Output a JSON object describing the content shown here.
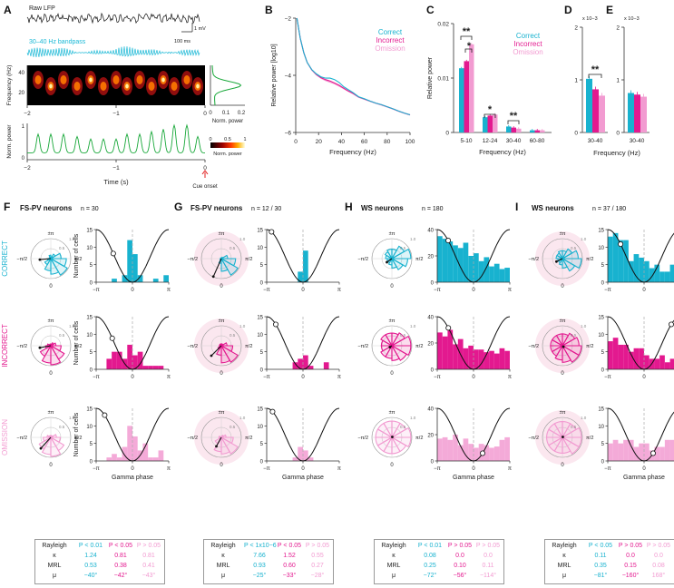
{
  "colors": {
    "correct": "#18b2cf",
    "incorrect": "#e3198f",
    "omission": "#f29bd1",
    "lfp": "#111111",
    "band": "#19b8d6",
    "power": "#19a83a",
    "wave": "#111111",
    "polarbg": "#fbe7ef"
  },
  "panelA": {
    "letter": "A",
    "raw_label": "Raw LFP",
    "band_label": "30–40 Hz bandpass",
    "scale_mv": "1 mV",
    "scale_ms": "100 ms",
    "freq_ylabel": "Frequency (Hz)",
    "freq_ticks": [
      "40",
      "20"
    ],
    "xticks": [
      "−2",
      "−1",
      "0"
    ],
    "side_xticks": [
      "0",
      "0.1",
      "0.2"
    ],
    "side_label": "Norm. power",
    "cbar_ticks": [
      "0",
      "0.5",
      "1"
    ],
    "cbar_label": "Norm. power",
    "pow_ylabel": "Norm. power",
    "pow_yticks": [
      "1",
      "0"
    ],
    "xlabel": "Time (s)",
    "cue_label": "Cue onset"
  },
  "chart_data": [
    {
      "id": "B",
      "type": "line",
      "title": "",
      "xlabel": "Frequency (Hz)",
      "ylabel": "Relative power [log10]",
      "xlim": [
        0,
        100
      ],
      "ylim": [
        -6,
        -2
      ],
      "xticks": [
        "0",
        "20",
        "40",
        "60",
        "80",
        "100"
      ],
      "yticks": [
        "−2",
        "−4",
        "−6"
      ],
      "legend": [
        "Correct",
        "Incorrect",
        "Omission"
      ],
      "x": [
        1,
        4,
        7,
        10,
        14,
        18,
        22,
        26,
        30,
        34,
        38,
        42,
        46,
        50,
        55,
        60,
        65,
        70,
        75,
        80,
        85,
        90,
        95,
        100
      ],
      "series": [
        {
          "name": "Correct",
          "values": [
            -2.0,
            -2.7,
            -3.2,
            -3.55,
            -3.8,
            -3.95,
            -4.05,
            -4.1,
            -4.1,
            -4.15,
            -4.25,
            -4.4,
            -4.5,
            -4.6,
            -4.75,
            -4.82,
            -4.9,
            -4.97,
            -5.03,
            -5.1,
            -5.17,
            -5.25,
            -5.32,
            -5.38
          ]
        },
        {
          "name": "Incorrect",
          "values": [
            -2.0,
            -2.7,
            -3.2,
            -3.55,
            -3.8,
            -3.97,
            -4.08,
            -4.15,
            -4.2,
            -4.27,
            -4.35,
            -4.45,
            -4.55,
            -4.63,
            -4.76,
            -4.83,
            -4.9,
            -4.97,
            -5.03,
            -5.1,
            -5.17,
            -5.25,
            -5.32,
            -5.38
          ]
        },
        {
          "name": "Omission",
          "values": [
            -2.0,
            -2.7,
            -3.2,
            -3.55,
            -3.82,
            -3.98,
            -4.1,
            -4.18,
            -4.24,
            -4.3,
            -4.38,
            -4.47,
            -4.56,
            -4.64,
            -4.77,
            -4.84,
            -4.91,
            -4.98,
            -5.04,
            -5.11,
            -5.18,
            -5.26,
            -5.33,
            -5.39
          ]
        }
      ]
    },
    {
      "id": "C",
      "type": "bar",
      "ylabel": "Relative power",
      "xlabel": "Frequency (Hz)",
      "ylim": [
        0,
        0.02
      ],
      "yticks": [
        "0",
        "0.01",
        "0.02"
      ],
      "categories": [
        "5-10",
        "12-24",
        "30-40",
        "60-80"
      ],
      "legend": [
        "Correct",
        "Incorrect",
        "Omission"
      ],
      "series": [
        {
          "name": "Correct",
          "values": [
            0.0118,
            0.0028,
            0.0011,
            0.0004
          ]
        },
        {
          "name": "Incorrect",
          "values": [
            0.0131,
            0.0031,
            0.0009,
            0.0004
          ]
        },
        {
          "name": "Omission",
          "values": [
            0.0162,
            0.0033,
            0.0007,
            0.0004
          ]
        }
      ],
      "annotations": [
        "**",
        "*",
        "*",
        "**"
      ]
    },
    {
      "id": "D",
      "type": "bar",
      "xlabel": "30-40",
      "exponent": "x 10−3",
      "ylim": [
        0,
        2
      ],
      "yticks": [
        "0",
        "1",
        "2"
      ],
      "series": [
        {
          "name": "Correct",
          "values": [
            1.02
          ]
        },
        {
          "name": "Incorrect",
          "values": [
            0.82
          ]
        },
        {
          "name": "Omission",
          "values": [
            0.7
          ]
        }
      ],
      "annotations": [
        "**"
      ]
    },
    {
      "id": "E",
      "type": "bar",
      "xlabel": "30-40",
      "exponent": "x 10−3",
      "ylim": [
        0,
        2
      ],
      "yticks": [
        "0",
        "1",
        "2"
      ],
      "series": [
        {
          "name": "Correct",
          "values": [
            0.75
          ]
        },
        {
          "name": "Incorrect",
          "values": [
            0.72
          ]
        },
        {
          "name": "Omission",
          "values": [
            0.68
          ]
        }
      ]
    }
  ],
  "freq_axis_label": "Frequency (Hz)",
  "panel_letters": {
    "B": "B",
    "C": "C",
    "D": "D",
    "E": "E"
  },
  "row_labels": [
    "CORRECT",
    "INCORRECT",
    "OMISSION"
  ],
  "polar_labels": {
    "top": "±π",
    "left": "−π/2",
    "right": "π/2",
    "bottom": "0",
    "r1": "1.0",
    "r05": "0.5"
  },
  "hist_common": {
    "xticks": [
      "−π",
      "0",
      "π"
    ],
    "xlabel": "Gamma phase",
    "ylabel": "Number of cells"
  },
  "groups": [
    {
      "letter": "F",
      "title": "FS-PV neurons",
      "n": "n = 30",
      "shaded": false,
      "yticks": [
        [
          "0",
          "5",
          "10",
          "15"
        ],
        [
          "0",
          "5",
          "10",
          "15"
        ],
        [
          "0",
          "5",
          "10",
          "15"
        ]
      ],
      "ymax": 15,
      "hist": [
        [
          0,
          0,
          0,
          1,
          0,
          2,
          12,
          8,
          2,
          0,
          0,
          1,
          0,
          2
        ],
        [
          0,
          0,
          3,
          5,
          5,
          3,
          7,
          4,
          5,
          1,
          1,
          1,
          1,
          0
        ],
        [
          0,
          0,
          1,
          2,
          1,
          4,
          10,
          7,
          3,
          5,
          1,
          1,
          3,
          0
        ]
      ],
      "vec": [
        [
          -0.55,
          0.05
        ],
        [
          -0.55,
          0.1
        ],
        [
          -0.5,
          0.55
        ]
      ],
      "petals": [
        [
          1,
          3,
          6,
          9,
          11,
          9,
          7,
          4,
          2,
          1,
          1,
          2
        ],
        [
          1,
          2,
          3,
          6,
          9,
          11,
          10,
          7,
          3,
          2,
          1,
          1
        ],
        [
          1,
          1,
          3,
          5,
          8,
          10,
          9,
          7,
          4,
          2,
          1,
          1
        ]
      ],
      "table": {
        "headers": [
          "Rayleigh",
          "P < 0.01",
          "P < 0.05",
          "P > 0.05"
        ],
        "rows": [
          [
            "κ",
            "1.24",
            "0.81",
            "0.81"
          ],
          [
            "MRL",
            "0.53",
            "0.38",
            "0.41"
          ],
          [
            "μ",
            "−40°",
            "−42°",
            "−43°"
          ]
        ]
      }
    },
    {
      "letter": "G",
      "title": "FS-PV neurons",
      "n": "n = 12 / 30",
      "shaded": true,
      "yticks": [
        [
          "0",
          "5",
          "10",
          "15"
        ],
        [
          "0",
          "5",
          "10",
          "15"
        ],
        [
          "0",
          "5",
          "10",
          "15"
        ]
      ],
      "ymax": 15,
      "hist": [
        [
          0,
          0,
          0,
          0,
          0,
          0,
          3,
          9,
          0,
          0,
          0,
          0,
          0,
          0
        ],
        [
          0,
          0,
          0,
          0,
          0,
          2,
          3,
          4,
          1,
          0,
          0,
          2,
          0,
          0
        ],
        [
          0,
          0,
          0,
          0,
          0,
          1,
          4,
          3,
          1,
          0,
          0,
          0,
          0,
          0
        ]
      ],
      "vec": [
        [
          -0.4,
          0.9
        ],
        [
          -0.5,
          0.5
        ],
        [
          -0.25,
          0.45
        ]
      ],
      "petals": [
        [
          0,
          1,
          4,
          9,
          12,
          8,
          3,
          1,
          0,
          0,
          0,
          0
        ],
        [
          1,
          1,
          3,
          6,
          10,
          9,
          5,
          2,
          1,
          1,
          1,
          1
        ],
        [
          0,
          1,
          2,
          5,
          8,
          7,
          6,
          3,
          1,
          1,
          0,
          0
        ]
      ],
      "table": {
        "headers": [
          "Rayleigh",
          "P < 1x10−6",
          "P < 0.05",
          "P > 0.05"
        ],
        "rows": [
          [
            "κ",
            "7.66",
            "1.52",
            "0.55"
          ],
          [
            "MRL",
            "0.93",
            "0.60",
            "0.27"
          ],
          [
            "μ",
            "−25°",
            "−33°",
            "−28°"
          ]
        ]
      }
    },
    {
      "letter": "H",
      "title": "WS neurons",
      "n": "n = 180",
      "shaded": false,
      "yticks": [
        [
          "0",
          "20",
          "40"
        ],
        [
          "0",
          "20",
          "40"
        ],
        [
          "0",
          "20",
          "40"
        ]
      ],
      "ymax": 40,
      "hist": [
        [
          35,
          33,
          31,
          28,
          26,
          30,
          20,
          22,
          16,
          19,
          12,
          14,
          10,
          11
        ],
        [
          28,
          25,
          30,
          19,
          23,
          16,
          18,
          15,
          15,
          13,
          14,
          12,
          16,
          14
        ],
        [
          17,
          18,
          16,
          20,
          12,
          17,
          13,
          10,
          13,
          12,
          10,
          11,
          16,
          18
        ]
      ],
      "vec": [
        [
          -0.25,
          0.18
        ],
        [
          -0.1,
          0.07
        ],
        [
          0.02,
          -0.02
        ]
      ],
      "petals": [
        [
          6,
          9,
          12,
          10,
          8,
          6,
          4,
          3,
          3,
          4,
          5,
          6
        ],
        [
          6,
          7,
          9,
          9,
          8,
          7,
          6,
          6,
          5,
          5,
          6,
          6
        ],
        [
          6,
          6,
          7,
          7,
          6,
          6,
          6,
          6,
          6,
          6,
          6,
          6
        ]
      ],
      "table": {
        "headers": [
          "Rayleigh",
          "P < 0.01",
          "P > 0.05",
          "P > 0.05"
        ],
        "rows": [
          [
            "κ",
            "0.08",
            "0.0",
            "0.0"
          ],
          [
            "MRL",
            "0.25",
            "0.10",
            "0.11"
          ],
          [
            "μ",
            "−72°",
            "−56°",
            "−114°"
          ]
        ]
      }
    },
    {
      "letter": "I",
      "title": "WS neurons",
      "n": "n = 37 / 180",
      "shaded": true,
      "yticks": [
        [
          "0",
          "5",
          "10",
          "15"
        ],
        [
          "0",
          "5",
          "10",
          "15"
        ],
        [
          "0",
          "5",
          "10",
          "15"
        ]
      ],
      "ymax": 15,
      "hist": [
        [
          13,
          14,
          12,
          12,
          6,
          8,
          7,
          6,
          4,
          5,
          3,
          3,
          5,
          2
        ],
        [
          8,
          9,
          7,
          7,
          5,
          6,
          6,
          4,
          3,
          3,
          4,
          2,
          3,
          4
        ],
        [
          5,
          6,
          5,
          6,
          6,
          4,
          5,
          5,
          3,
          4,
          4,
          6,
          6,
          7
        ]
      ],
      "vec": [
        [
          -0.3,
          0.15
        ],
        [
          0.05,
          0.05
        ],
        [
          0.02,
          -0.02
        ]
      ],
      "petals": [
        [
          5,
          7,
          10,
          12,
          9,
          6,
          4,
          3,
          3,
          4,
          4,
          5
        ],
        [
          5,
          6,
          7,
          8,
          8,
          7,
          6,
          5,
          5,
          5,
          5,
          5
        ],
        [
          5,
          5,
          6,
          6,
          6,
          5,
          5,
          5,
          5,
          5,
          5,
          5
        ]
      ],
      "table": {
        "headers": [
          "Rayleigh",
          "P < 0.05",
          "P > 0.05",
          "P > 0.05"
        ],
        "rows": [
          [
            "κ",
            "0.11",
            "0.0",
            "0.0"
          ],
          [
            "MRL",
            "0.35",
            "0.15",
            "0.08"
          ],
          [
            "μ",
            "−81°",
            "−160°",
            "168°"
          ]
        ]
      }
    }
  ]
}
